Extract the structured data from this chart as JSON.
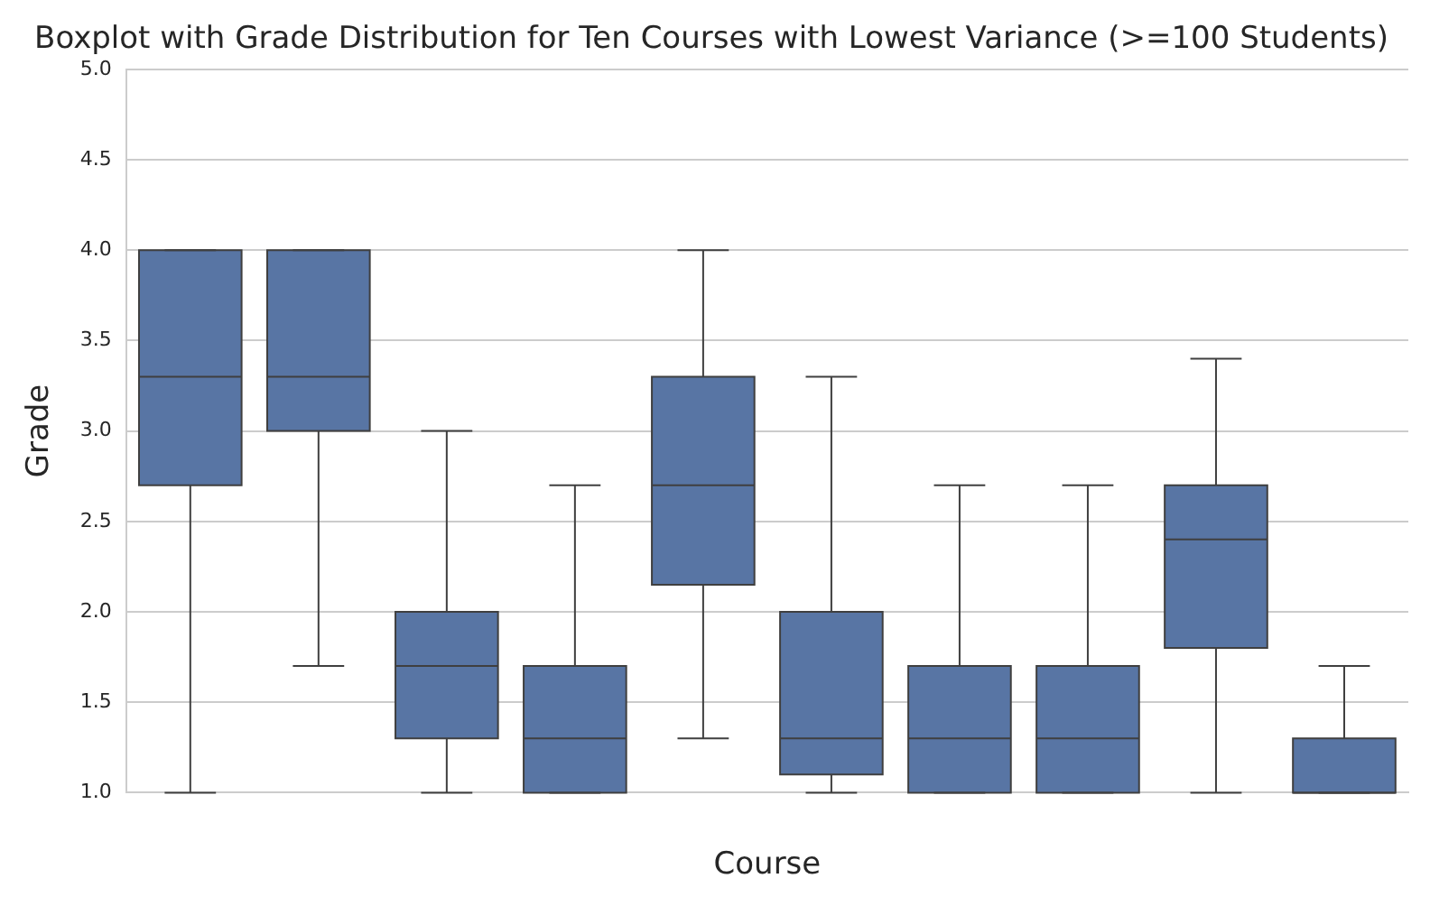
{
  "chart_data": {
    "type": "box",
    "title": "Boxplot with Grade Distribution for Ten Courses with Lowest Variance (>=100 Students)",
    "xlabel": "Course",
    "ylabel": "Grade",
    "categories": [
      null,
      null,
      null,
      null,
      null,
      null,
      null,
      null,
      null,
      null
    ],
    "color": "#5875a4",
    "boxes": [
      {
        "low": 1.0,
        "q1": 2.7,
        "median": 3.3,
        "q3": 4.0,
        "high": 4.0
      },
      {
        "low": 1.7,
        "q1": 3.0,
        "median": 3.3,
        "q3": 4.0,
        "high": 4.0
      },
      {
        "low": 1.0,
        "q1": 1.3,
        "median": 1.7,
        "q3": 2.0,
        "high": 3.0
      },
      {
        "low": 1.0,
        "q1": 1.0,
        "median": 1.3,
        "q3": 1.7,
        "high": 2.7
      },
      {
        "low": 1.3,
        "q1": 2.15,
        "median": 2.7,
        "q3": 3.3,
        "high": 4.0
      },
      {
        "low": 1.0,
        "q1": 1.1,
        "median": 1.3,
        "q3": 2.0,
        "high": 3.3
      },
      {
        "low": 1.0,
        "q1": 1.0,
        "median": 1.3,
        "q3": 1.7,
        "high": 2.7
      },
      {
        "low": 1.0,
        "q1": 1.0,
        "median": 1.3,
        "q3": 1.7,
        "high": 2.7
      },
      {
        "low": 1.0,
        "q1": 1.8,
        "median": 2.4,
        "q3": 2.7,
        "high": 3.4
      },
      {
        "low": 1.0,
        "q1": 1.0,
        "median": 1.0,
        "q3": 1.3,
        "high": 1.7
      }
    ],
    "ylim": [
      1,
      5
    ],
    "yticks": [
      {
        "value": 1,
        "label": "1.0"
      },
      {
        "value": 1.5,
        "label": "1.5"
      },
      {
        "value": 2,
        "label": "2.0"
      },
      {
        "value": 2.5,
        "label": "2.5"
      },
      {
        "value": 3,
        "label": "3.0"
      },
      {
        "value": 3.5,
        "label": "3.5"
      },
      {
        "value": 4,
        "label": "4.0"
      },
      {
        "value": 4.5,
        "label": "4.5"
      },
      {
        "value": 5,
        "label": "5.0"
      }
    ],
    "grid": "y"
  }
}
